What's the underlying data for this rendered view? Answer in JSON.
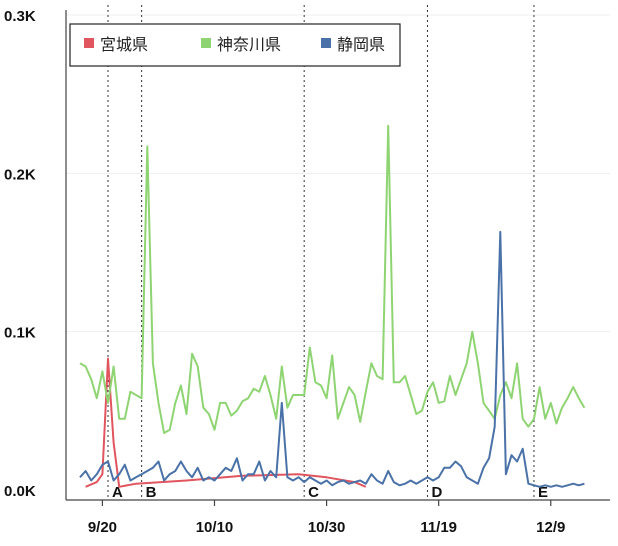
{
  "chart_data": {
    "type": "line",
    "title": "",
    "xlabel": "",
    "ylabel": "",
    "x_start": "2020-09-16",
    "x_end": "2020-12-16",
    "ylim": [
      0,
      300
    ],
    "y_ticks": [
      {
        "value": 0,
        "label": "0.0K"
      },
      {
        "value": 100,
        "label": "0.1K"
      },
      {
        "value": 200,
        "label": "0.2K"
      },
      {
        "value": 300,
        "label": "0.3K"
      }
    ],
    "x_ticks": [
      {
        "date": "2020-09-20",
        "label": "9/20"
      },
      {
        "date": "2020-10-10",
        "label": "10/10"
      },
      {
        "date": "2020-10-30",
        "label": "10/30"
      },
      {
        "date": "2020-11-19",
        "label": "11/19"
      },
      {
        "date": "2020-12-09",
        "label": "12/9"
      }
    ],
    "grid": true,
    "legend": "top-left",
    "annotations": [
      {
        "label": "A",
        "date": "2020-09-21"
      },
      {
        "label": "B",
        "date": "2020-09-27"
      },
      {
        "label": "C",
        "date": "2020-10-26"
      },
      {
        "label": "D",
        "date": "2020-11-17"
      },
      {
        "label": "E",
        "date": "2020-12-06"
      }
    ],
    "series": [
      {
        "name": "宮城県",
        "color": "#e0555e",
        "points": [
          [
            "2020-09-17",
            2
          ],
          [
            "2020-09-19",
            5
          ],
          [
            "2020-09-20",
            10
          ],
          [
            "2020-09-21",
            83
          ],
          [
            "2020-09-22",
            30
          ],
          [
            "2020-09-23",
            2
          ],
          [
            "2020-09-26",
            4
          ],
          [
            "2020-10-05",
            6
          ],
          [
            "2020-10-15",
            9
          ],
          [
            "2020-10-25",
            10
          ],
          [
            "2020-10-30",
            8
          ],
          [
            "2020-11-04",
            5
          ],
          [
            "2020-11-06",
            2
          ]
        ]
      },
      {
        "name": "神奈川県",
        "color": "#8fd472",
        "points": [
          [
            "2020-09-16",
            80
          ],
          [
            "2020-09-17",
            78
          ],
          [
            "2020-09-18",
            70
          ],
          [
            "2020-09-19",
            58
          ],
          [
            "2020-09-20",
            75
          ],
          [
            "2020-09-21",
            55
          ],
          [
            "2020-09-22",
            78
          ],
          [
            "2020-09-23",
            45
          ],
          [
            "2020-09-24",
            45
          ],
          [
            "2020-09-25",
            62
          ],
          [
            "2020-09-26",
            60
          ],
          [
            "2020-09-27",
            58
          ],
          [
            "2020-09-28",
            217
          ],
          [
            "2020-09-29",
            80
          ],
          [
            "2020-09-30",
            55
          ],
          [
            "2020-10-01",
            36
          ],
          [
            "2020-10-02",
            38
          ],
          [
            "2020-10-03",
            55
          ],
          [
            "2020-10-04",
            66
          ],
          [
            "2020-10-05",
            48
          ],
          [
            "2020-10-06",
            86
          ],
          [
            "2020-10-07",
            78
          ],
          [
            "2020-10-08",
            52
          ],
          [
            "2020-10-09",
            48
          ],
          [
            "2020-10-10",
            38
          ],
          [
            "2020-10-11",
            55
          ],
          [
            "2020-10-12",
            55
          ],
          [
            "2020-10-13",
            47
          ],
          [
            "2020-10-14",
            50
          ],
          [
            "2020-10-15",
            56
          ],
          [
            "2020-10-16",
            58
          ],
          [
            "2020-10-17",
            64
          ],
          [
            "2020-10-18",
            62
          ],
          [
            "2020-10-19",
            72
          ],
          [
            "2020-10-20",
            60
          ],
          [
            "2020-10-21",
            45
          ],
          [
            "2020-10-22",
            78
          ],
          [
            "2020-10-23",
            52
          ],
          [
            "2020-10-24",
            60
          ],
          [
            "2020-10-25",
            60
          ],
          [
            "2020-10-26",
            60
          ],
          [
            "2020-10-27",
            90
          ],
          [
            "2020-10-28",
            68
          ],
          [
            "2020-10-29",
            66
          ],
          [
            "2020-10-30",
            58
          ],
          [
            "2020-10-31",
            85
          ],
          [
            "2020-11-01",
            45
          ],
          [
            "2020-11-02",
            55
          ],
          [
            "2020-11-03",
            65
          ],
          [
            "2020-11-04",
            60
          ],
          [
            "2020-11-05",
            43
          ],
          [
            "2020-11-06",
            62
          ],
          [
            "2020-11-07",
            80
          ],
          [
            "2020-11-08",
            72
          ],
          [
            "2020-11-09",
            70
          ],
          [
            "2020-11-10",
            230
          ],
          [
            "2020-11-11",
            68
          ],
          [
            "2020-11-12",
            68
          ],
          [
            "2020-11-13",
            72
          ],
          [
            "2020-11-14",
            60
          ],
          [
            "2020-11-15",
            48
          ],
          [
            "2020-11-16",
            50
          ],
          [
            "2020-11-17",
            62
          ],
          [
            "2020-11-18",
            68
          ],
          [
            "2020-11-19",
            55
          ],
          [
            "2020-11-20",
            56
          ],
          [
            "2020-11-21",
            72
          ],
          [
            "2020-11-22",
            60
          ],
          [
            "2020-11-23",
            70
          ],
          [
            "2020-11-24",
            80
          ],
          [
            "2020-11-25",
            100
          ],
          [
            "2020-11-26",
            80
          ],
          [
            "2020-11-27",
            55
          ],
          [
            "2020-11-28",
            50
          ],
          [
            "2020-11-29",
            45
          ],
          [
            "2020-11-30",
            60
          ],
          [
            "2020-12-01",
            68
          ],
          [
            "2020-12-02",
            58
          ],
          [
            "2020-12-03",
            80
          ],
          [
            "2020-12-04",
            45
          ],
          [
            "2020-12-05",
            40
          ],
          [
            "2020-12-06",
            45
          ],
          [
            "2020-12-07",
            65
          ],
          [
            "2020-12-08",
            45
          ],
          [
            "2020-12-09",
            55
          ],
          [
            "2020-12-10",
            42
          ],
          [
            "2020-12-11",
            52
          ],
          [
            "2020-12-12",
            58
          ],
          [
            "2020-12-13",
            65
          ],
          [
            "2020-12-14",
            58
          ],
          [
            "2020-12-15",
            52
          ]
        ]
      },
      {
        "name": "静岡県",
        "color": "#4a72a8",
        "points": [
          [
            "2020-09-16",
            8
          ],
          [
            "2020-09-17",
            12
          ],
          [
            "2020-09-18",
            6
          ],
          [
            "2020-09-19",
            10
          ],
          [
            "2020-09-20",
            16
          ],
          [
            "2020-09-21",
            18
          ],
          [
            "2020-09-22",
            6
          ],
          [
            "2020-09-23",
            10
          ],
          [
            "2020-09-24",
            16
          ],
          [
            "2020-09-25",
            6
          ],
          [
            "2020-09-26",
            8
          ],
          [
            "2020-09-27",
            10
          ],
          [
            "2020-09-28",
            12
          ],
          [
            "2020-09-29",
            14
          ],
          [
            "2020-09-30",
            18
          ],
          [
            "2020-10-01",
            6
          ],
          [
            "2020-10-02",
            10
          ],
          [
            "2020-10-03",
            12
          ],
          [
            "2020-10-04",
            18
          ],
          [
            "2020-10-05",
            12
          ],
          [
            "2020-10-06",
            8
          ],
          [
            "2020-10-07",
            14
          ],
          [
            "2020-10-08",
            6
          ],
          [
            "2020-10-09",
            8
          ],
          [
            "2020-10-10",
            6
          ],
          [
            "2020-10-11",
            10
          ],
          [
            "2020-10-12",
            14
          ],
          [
            "2020-10-13",
            12
          ],
          [
            "2020-10-14",
            20
          ],
          [
            "2020-10-15",
            6
          ],
          [
            "2020-10-16",
            10
          ],
          [
            "2020-10-17",
            10
          ],
          [
            "2020-10-18",
            18
          ],
          [
            "2020-10-19",
            6
          ],
          [
            "2020-10-20",
            12
          ],
          [
            "2020-10-21",
            8
          ],
          [
            "2020-10-22",
            55
          ],
          [
            "2020-10-23",
            8
          ],
          [
            "2020-10-24",
            6
          ],
          [
            "2020-10-25",
            8
          ],
          [
            "2020-10-26",
            5
          ],
          [
            "2020-10-27",
            8
          ],
          [
            "2020-10-28",
            6
          ],
          [
            "2020-10-29",
            4
          ],
          [
            "2020-10-30",
            6
          ],
          [
            "2020-10-31",
            3
          ],
          [
            "2020-11-01",
            5
          ],
          [
            "2020-11-02",
            6
          ],
          [
            "2020-11-03",
            4
          ],
          [
            "2020-11-04",
            5
          ],
          [
            "2020-11-05",
            6
          ],
          [
            "2020-11-06",
            4
          ],
          [
            "2020-11-07",
            10
          ],
          [
            "2020-11-08",
            6
          ],
          [
            "2020-11-09",
            4
          ],
          [
            "2020-11-10",
            12
          ],
          [
            "2020-11-11",
            5
          ],
          [
            "2020-11-12",
            3
          ],
          [
            "2020-11-13",
            4
          ],
          [
            "2020-11-14",
            6
          ],
          [
            "2020-11-15",
            4
          ],
          [
            "2020-11-16",
            6
          ],
          [
            "2020-11-17",
            8
          ],
          [
            "2020-11-18",
            6
          ],
          [
            "2020-11-19",
            8
          ],
          [
            "2020-11-20",
            14
          ],
          [
            "2020-11-21",
            14
          ],
          [
            "2020-11-22",
            18
          ],
          [
            "2020-11-23",
            15
          ],
          [
            "2020-11-24",
            8
          ],
          [
            "2020-11-25",
            6
          ],
          [
            "2020-11-26",
            4
          ],
          [
            "2020-11-27",
            14
          ],
          [
            "2020-11-28",
            20
          ],
          [
            "2020-11-29",
            40
          ],
          [
            "2020-11-30",
            163
          ],
          [
            "2020-12-01",
            10
          ],
          [
            "2020-12-02",
            22
          ],
          [
            "2020-12-03",
            18
          ],
          [
            "2020-12-04",
            26
          ],
          [
            "2020-12-05",
            4
          ],
          [
            "2020-12-06",
            3
          ],
          [
            "2020-12-07",
            2
          ],
          [
            "2020-12-08",
            3
          ],
          [
            "2020-12-09",
            2
          ],
          [
            "2020-12-10",
            3
          ],
          [
            "2020-12-11",
            2
          ],
          [
            "2020-12-12",
            3
          ],
          [
            "2020-12-13",
            4
          ],
          [
            "2020-12-14",
            3
          ],
          [
            "2020-12-15",
            4
          ]
        ]
      }
    ]
  }
}
